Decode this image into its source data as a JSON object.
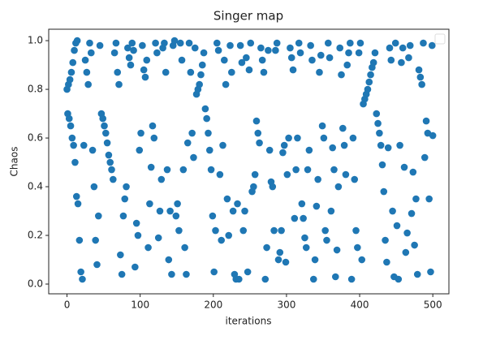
{
  "chart_data": {
    "type": "scatter",
    "title": "Singer map",
    "xlabel": "iterations",
    "ylabel": "Chaos",
    "color": "#1f77b4",
    "xlim": [
      -25,
      522
    ],
    "ylim": [
      -0.04,
      1.047
    ],
    "xticks": [
      0,
      100,
      200,
      300,
      400,
      500
    ],
    "yticks": [
      {
        "value": 0,
        "label": "0.0"
      },
      0.2,
      0.4,
      0.6,
      0.8,
      {
        "value": 1,
        "label": "1.0"
      }
    ],
    "x": [
      0,
      1,
      2,
      3,
      4,
      5,
      6,
      7,
      8,
      9,
      10,
      11,
      12,
      13,
      14,
      15,
      17,
      19,
      21,
      23,
      25,
      27,
      29,
      31,
      33,
      35,
      37,
      39,
      41,
      43,
      45,
      47,
      49,
      51,
      53,
      55,
      57,
      59,
      61,
      63,
      65,
      67,
      69,
      71,
      73,
      75,
      77,
      79,
      81,
      83,
      85,
      87,
      89,
      91,
      93,
      95,
      97,
      99,
      101,
      103,
      105,
      107,
      109,
      111,
      113,
      115,
      117,
      119,
      121,
      123,
      125,
      127,
      129,
      131,
      133,
      135,
      137,
      139,
      141,
      143,
      145,
      147,
      149,
      151,
      153,
      155,
      157,
      159,
      161,
      163,
      165,
      167,
      169,
      171,
      173,
      175,
      177,
      179,
      181,
      183,
      185,
      187,
      189,
      191,
      193,
      195,
      197,
      199,
      201,
      203,
      205,
      207,
      209,
      211,
      213,
      215,
      217,
      219,
      221,
      223,
      225,
      227,
      229,
      231,
      233,
      235,
      237,
      239,
      241,
      243,
      245,
      247,
      249,
      251,
      253,
      255,
      257,
      259,
      261,
      263,
      265,
      267,
      269,
      271,
      273,
      275,
      277,
      279,
      281,
      283,
      285,
      287,
      289,
      291,
      293,
      295,
      297,
      299,
      301,
      303,
      305,
      307,
      309,
      311,
      313,
      315,
      317,
      319,
      321,
      323,
      325,
      327,
      329,
      331,
      333,
      335,
      337,
      339,
      341,
      343,
      345,
      347,
      349,
      351,
      353,
      355,
      357,
      359,
      361,
      363,
      365,
      367,
      369,
      371,
      373,
      375,
      377,
      379,
      381,
      383,
      385,
      387,
      389,
      391,
      393,
      395,
      397,
      399,
      401,
      403,
      405,
      407,
      409,
      411,
      413,
      415,
      417,
      419,
      421,
      423,
      425,
      427,
      429,
      431,
      433,
      435,
      437,
      439,
      441,
      443,
      445,
      447,
      449,
      451,
      453,
      455,
      457,
      459,
      461,
      463,
      465,
      467,
      469,
      471,
      473,
      475,
      477,
      479,
      481,
      483,
      485,
      487,
      489,
      491,
      493,
      495,
      497,
      499,
      500
    ],
    "values": [
      0.8,
      0.7,
      0.82,
      0.68,
      0.84,
      0.65,
      0.87,
      0.6,
      0.91,
      0.57,
      0.96,
      0.5,
      0.99,
      0.36,
      1.0,
      0.33,
      0.18,
      0.05,
      0.02,
      0.57,
      0.92,
      0.87,
      0.82,
      0.99,
      0.95,
      0.55,
      0.4,
      0.18,
      0.08,
      0.28,
      0.98,
      0.7,
      0.68,
      0.65,
      0.62,
      0.58,
      0.53,
      0.5,
      0.47,
      0.43,
      0.95,
      0.99,
      0.87,
      0.82,
      0.12,
      0.04,
      0.28,
      0.35,
      0.4,
      0.97,
      0.93,
      0.9,
      0.99,
      0.96,
      0.07,
      0.25,
      0.2,
      0.55,
      0.62,
      0.98,
      0.88,
      0.85,
      0.92,
      0.15,
      0.33,
      0.48,
      0.65,
      0.6,
      0.99,
      0.95,
      0.19,
      0.3,
      0.43,
      0.97,
      0.99,
      0.87,
      0.47,
      0.1,
      0.3,
      0.04,
      0.98,
      1.0,
      0.28,
      0.33,
      0.22,
      0.99,
      0.92,
      0.47,
      0.15,
      0.04,
      0.58,
      0.99,
      0.87,
      0.62,
      0.52,
      0.97,
      0.78,
      0.8,
      0.82,
      0.86,
      0.9,
      0.95,
      0.72,
      0.68,
      0.62,
      0.55,
      0.47,
      0.28,
      0.05,
      0.22,
      0.99,
      0.96,
      0.45,
      0.18,
      0.57,
      0.92,
      0.82,
      0.35,
      0.2,
      0.98,
      0.87,
      0.3,
      0.04,
      0.02,
      0.33,
      0.02,
      0.98,
      0.91,
      0.22,
      0.3,
      0.93,
      0.05,
      0.88,
      0.99,
      0.38,
      0.4,
      0.45,
      0.67,
      0.62,
      0.58,
      0.97,
      0.92,
      0.87,
      0.02,
      0.15,
      0.96,
      0.55,
      0.42,
      0.4,
      0.22,
      0.96,
      0.99,
      0.1,
      0.13,
      0.22,
      0.54,
      0.57,
      0.09,
      0.45,
      0.6,
      0.97,
      0.93,
      0.88,
      0.27,
      0.47,
      0.6,
      0.99,
      0.95,
      0.33,
      0.27,
      0.19,
      0.15,
      0.47,
      0.55,
      0.98,
      0.92,
      0.02,
      0.1,
      0.32,
      0.43,
      0.87,
      0.94,
      0.65,
      0.6,
      0.22,
      0.18,
      0.99,
      0.93,
      0.3,
      0.56,
      0.47,
      0.03,
      0.14,
      0.4,
      0.97,
      0.86,
      0.64,
      0.57,
      0.45,
      0.9,
      0.95,
      0.99,
      0.02,
      0.6,
      0.43,
      0.22,
      0.15,
      0.95,
      0.99,
      0.1,
      0.74,
      0.76,
      0.78,
      0.8,
      0.83,
      0.86,
      0.89,
      0.91,
      0.95,
      0.7,
      0.66,
      0.62,
      0.57,
      0.49,
      0.38,
      0.18,
      0.09,
      0.56,
      0.97,
      0.92,
      0.3,
      0.03,
      0.99,
      0.24,
      0.02,
      0.57,
      0.91,
      0.97,
      0.48,
      0.13,
      0.21,
      0.93,
      0.98,
      0.29,
      0.46,
      0.16,
      0.35,
      0.04,
      0.88,
      0.85,
      0.82,
      0.99,
      0.52,
      0.67,
      0.62,
      0.35,
      0.05,
      0.98,
      0.61
    ]
  }
}
